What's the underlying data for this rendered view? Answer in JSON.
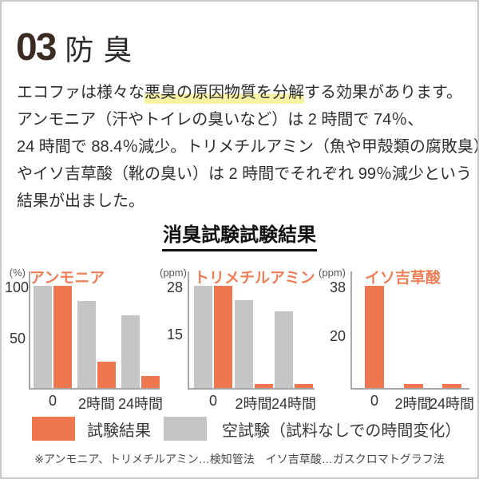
{
  "header": {
    "number": "03",
    "title": "防臭"
  },
  "intro": {
    "line1_pre": "エコファは様々な",
    "line1_highlight": "悪臭の原因物質を分解",
    "line1_post": "する効果があります。",
    "line2": "アンモニア（汗やトイレの臭いなど）は 2 時間で 74％、",
    "line3": "24 時間で 88.4％減少。トリメチルアミン（魚や甲殻類の腐敗臭）",
    "line4": "やイソ吉草酸（靴の臭い）は 2 時間でそれぞれ 99％減少という",
    "line5": "結果が出ました。"
  },
  "section": {
    "heading": "消臭試験試験結果"
  },
  "chart_data": [
    {
      "type": "bar",
      "title": "アンモニア",
      "unit": "(%)",
      "categories": [
        "0",
        "2時間",
        "24時間"
      ],
      "series": [
        {
          "name": "空試験",
          "color": "#c5c5c5",
          "values": [
            100,
            85,
            71
          ]
        },
        {
          "name": "試験結果",
          "color": "#ee7750",
          "values": [
            100,
            26,
            11.6
          ]
        }
      ],
      "yticks": [
        100,
        50
      ],
      "ylim": [
        0,
        100
      ],
      "xlabel": "",
      "ylabel": "%",
      "grid": false
    },
    {
      "type": "bar",
      "title": "トリメチルアミン",
      "unit": "(ppm)",
      "categories": [
        "0",
        "2時間",
        "24時間"
      ],
      "series": [
        {
          "name": "空試験",
          "color": "#c5c5c5",
          "values": [
            28,
            24,
            21
          ]
        },
        {
          "name": "試験結果",
          "color": "#ee7750",
          "values": [
            28,
            0.3,
            0.3
          ]
        }
      ],
      "yticks": [
        28,
        15
      ],
      "ylim": [
        0,
        28
      ],
      "xlabel": "",
      "ylabel": "ppm",
      "grid": false
    },
    {
      "type": "bar",
      "title": "イソ吉草酸",
      "unit": "(ppm)",
      "categories": [
        "0",
        "2時間",
        "24時間"
      ],
      "series": [
        {
          "name": "試験結果",
          "color": "#ee7750",
          "values": [
            38,
            1,
            1
          ]
        }
      ],
      "yticks": [
        38,
        20
      ],
      "ylim": [
        0,
        38
      ],
      "xlabel": "",
      "ylabel": "ppm",
      "grid": false
    }
  ],
  "legend": {
    "result_label": "試験結果",
    "blank_label": "空試験（試料なしでの時間変化）",
    "result_color": "#ee7750",
    "blank_color": "#c5c5c5",
    "position": "bottom"
  },
  "footnote": "※アンモニア、トリメチルアミン…検知管法　イソ吉草酸…ガスクロマトグラフ法",
  "colors": {
    "accent_orange": "#ee7750",
    "chart_title_orange": "#ef7f58",
    "bar_gray": "#c5c5c5",
    "axis_gray": "#a6a6a6",
    "highlight_yellow": "#f7f1a3",
    "heading_dark": "#3b2b23"
  }
}
